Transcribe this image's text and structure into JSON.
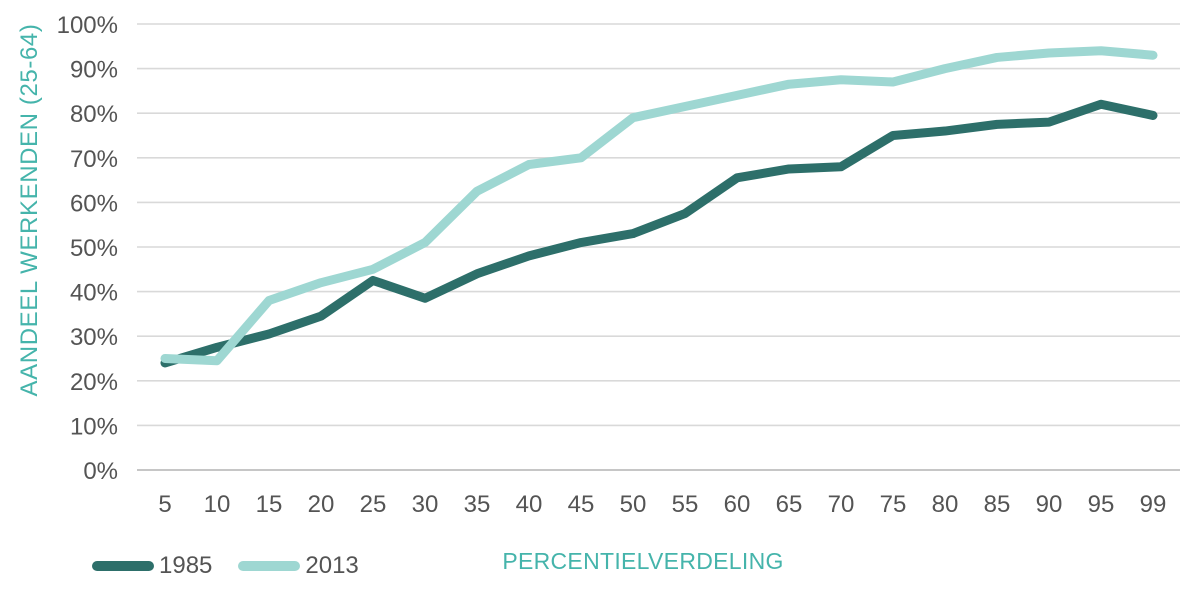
{
  "chart_data": {
    "type": "line",
    "title": "",
    "categories": [
      5,
      10,
      15,
      20,
      25,
      30,
      35,
      40,
      45,
      50,
      55,
      60,
      65,
      70,
      75,
      80,
      85,
      90,
      95,
      99
    ],
    "series": [
      {
        "name": "1985",
        "color": "#2d6f6a",
        "values": [
          24,
          27.5,
          30.5,
          34.5,
          42.5,
          38.5,
          44,
          48,
          51,
          53,
          57.5,
          65.5,
          67.5,
          68,
          75,
          76,
          77.5,
          78,
          82,
          79.5
        ]
      },
      {
        "name": "2013",
        "color": "#9ed7d2",
        "values": [
          25,
          24.5,
          38,
          42,
          45,
          51,
          62.5,
          68.5,
          70,
          79,
          81.5,
          84,
          86.5,
          87.5,
          87,
          90,
          92.5,
          93.5,
          94,
          93
        ]
      }
    ],
    "xlabel": "PERCENTIELVERDELING",
    "ylabel": "AANDEEL WERKENDEN (25-64)",
    "ylim": [
      0,
      100
    ],
    "ytick_step": 10,
    "ytick_suffix": "%",
    "grid": "horizontal-only",
    "legend_position": "bottom-left"
  },
  "colors": {
    "axis_title_text": "#45b4ab",
    "tick_text": "#545454",
    "gridline": "#d9d9d9",
    "axis_line": "#c6c6c6",
    "background": "#ffffff"
  }
}
